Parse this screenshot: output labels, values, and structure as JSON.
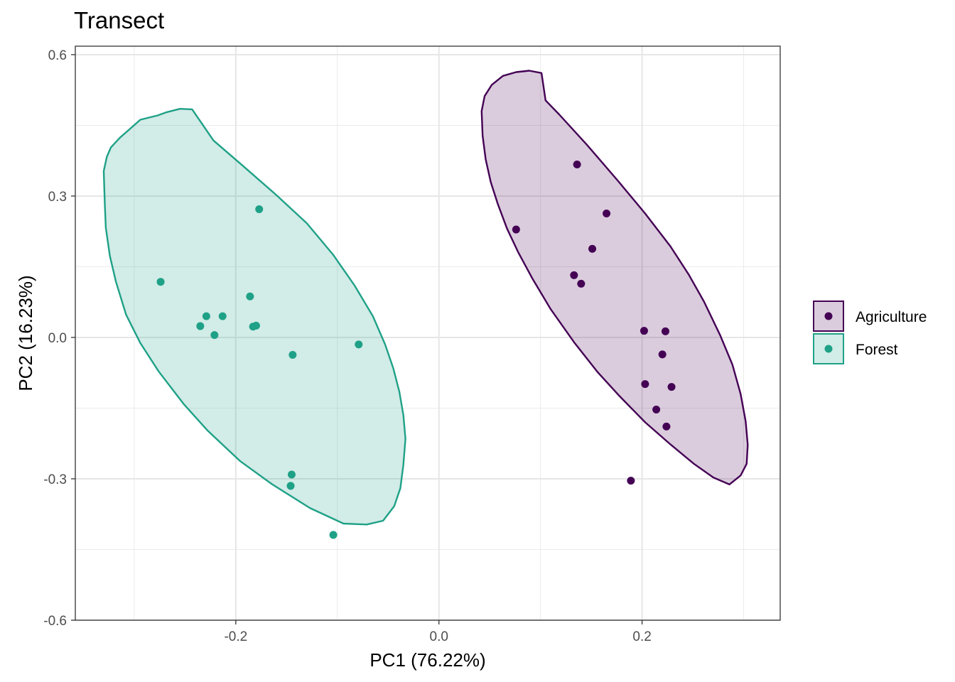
{
  "chart_data": {
    "type": "scatter",
    "title": "Transect",
    "xlabel": "PC1 (76.22%)",
    "ylabel": "PC2 (16.23%)",
    "xlim": [
      -0.358,
      0.336
    ],
    "ylim": [
      -0.6,
      0.618
    ],
    "x_ticks": [
      -0.2,
      0.0,
      0.2
    ],
    "x_tick_labels": [
      "-0.2",
      "0.0",
      "0.2"
    ],
    "x_minor": [
      -0.3,
      -0.1,
      0.1,
      0.3
    ],
    "y_ticks": [
      -0.6,
      -0.3,
      0.0,
      0.3,
      0.6
    ],
    "y_tick_labels": [
      "-0.6",
      "-0.3",
      "0.0",
      "0.3",
      "0.6"
    ],
    "y_minor": [
      -0.45,
      -0.15,
      0.15,
      0.45
    ],
    "grid": true,
    "legend_position": "right",
    "series": [
      {
        "name": "Forest",
        "color": "#1fa187",
        "fill": "#1fa187",
        "points": [
          [
            -0.274,
            0.118
          ],
          [
            -0.177,
            0.272
          ],
          [
            -0.186,
            0.087
          ],
          [
            -0.229,
            0.045
          ],
          [
            -0.213,
            0.045
          ],
          [
            -0.235,
            0.024
          ],
          [
            -0.221,
            0.005
          ],
          [
            -0.183,
            0.023
          ],
          [
            -0.18,
            0.025
          ],
          [
            -0.144,
            -0.037
          ],
          [
            -0.079,
            -0.015
          ],
          [
            -0.145,
            -0.291
          ],
          [
            -0.146,
            -0.315
          ],
          [
            -0.104,
            -0.419
          ]
        ],
        "ellipse": [
          [
            -0.243,
            0.484
          ],
          [
            -0.255,
            0.485
          ],
          [
            -0.268,
            0.478
          ],
          [
            -0.277,
            0.471
          ],
          [
            -0.294,
            0.462
          ],
          [
            -0.305,
            0.441
          ],
          [
            -0.314,
            0.424
          ],
          [
            -0.323,
            0.403
          ],
          [
            -0.327,
            0.383
          ],
          [
            -0.33,
            0.353
          ],
          [
            -0.329,
            0.283
          ],
          [
            -0.328,
            0.233
          ],
          [
            -0.324,
            0.173
          ],
          [
            -0.318,
            0.118
          ],
          [
            -0.308,
            0.048
          ],
          [
            -0.294,
            -0.012
          ],
          [
            -0.276,
            -0.072
          ],
          [
            -0.251,
            -0.142
          ],
          [
            -0.228,
            -0.197
          ],
          [
            -0.196,
            -0.262
          ],
          [
            -0.164,
            -0.312
          ],
          [
            -0.127,
            -0.362
          ],
          [
            -0.094,
            -0.395
          ],
          [
            -0.071,
            -0.397
          ],
          [
            -0.055,
            -0.389
          ],
          [
            -0.044,
            -0.358
          ],
          [
            -0.038,
            -0.32
          ],
          [
            -0.035,
            -0.27
          ],
          [
            -0.033,
            -0.215
          ],
          [
            -0.035,
            -0.165
          ],
          [
            -0.039,
            -0.115
          ],
          [
            -0.045,
            -0.065
          ],
          [
            -0.053,
            -0.015
          ],
          [
            -0.065,
            0.045
          ],
          [
            -0.083,
            0.11
          ],
          [
            -0.104,
            0.175
          ],
          [
            -0.13,
            0.242
          ],
          [
            -0.16,
            0.302
          ],
          [
            -0.194,
            0.366
          ],
          [
            -0.222,
            0.418
          ]
        ]
      },
      {
        "name": "Agriculture",
        "color": "#440154",
        "fill": "#440154",
        "points": [
          [
            0.136,
            0.367
          ],
          [
            0.165,
            0.263
          ],
          [
            0.076,
            0.229
          ],
          [
            0.151,
            0.188
          ],
          [
            0.133,
            0.132
          ],
          [
            0.14,
            0.114
          ],
          [
            0.202,
            0.014
          ],
          [
            0.223,
            0.013
          ],
          [
            0.22,
            -0.036
          ],
          [
            0.203,
            -0.099
          ],
          [
            0.229,
            -0.105
          ],
          [
            0.214,
            -0.153
          ],
          [
            0.224,
            -0.189
          ],
          [
            0.189,
            -0.304
          ]
        ],
        "ellipse": [
          [
            0.089,
            0.566
          ],
          [
            0.076,
            0.563
          ],
          [
            0.063,
            0.555
          ],
          [
            0.052,
            0.536
          ],
          [
            0.045,
            0.512
          ],
          [
            0.042,
            0.48
          ],
          [
            0.043,
            0.428
          ],
          [
            0.046,
            0.378
          ],
          [
            0.051,
            0.33
          ],
          [
            0.058,
            0.283
          ],
          [
            0.067,
            0.231
          ],
          [
            0.078,
            0.181
          ],
          [
            0.092,
            0.125
          ],
          [
            0.11,
            0.06
          ],
          [
            0.133,
            -0.01
          ],
          [
            0.156,
            -0.073
          ],
          [
            0.178,
            -0.125
          ],
          [
            0.203,
            -0.18
          ],
          [
            0.228,
            -0.227
          ],
          [
            0.251,
            -0.268
          ],
          [
            0.27,
            -0.297
          ],
          [
            0.286,
            -0.312
          ],
          [
            0.297,
            -0.293
          ],
          [
            0.303,
            -0.268
          ],
          [
            0.304,
            -0.228
          ],
          [
            0.302,
            -0.178
          ],
          [
            0.297,
            -0.12
          ],
          [
            0.289,
            -0.058
          ],
          [
            0.277,
            0.004
          ],
          [
            0.261,
            0.076
          ],
          [
            0.246,
            0.133
          ],
          [
            0.228,
            0.193
          ],
          [
            0.203,
            0.263
          ],
          [
            0.176,
            0.333
          ],
          [
            0.146,
            0.408
          ],
          [
            0.118,
            0.474
          ],
          [
            0.105,
            0.503
          ],
          [
            0.101,
            0.561
          ]
        ]
      }
    ]
  },
  "legend": {
    "items": [
      {
        "label": "Agriculture",
        "color": "#440154"
      },
      {
        "label": "Forest",
        "color": "#1fa187"
      }
    ]
  }
}
